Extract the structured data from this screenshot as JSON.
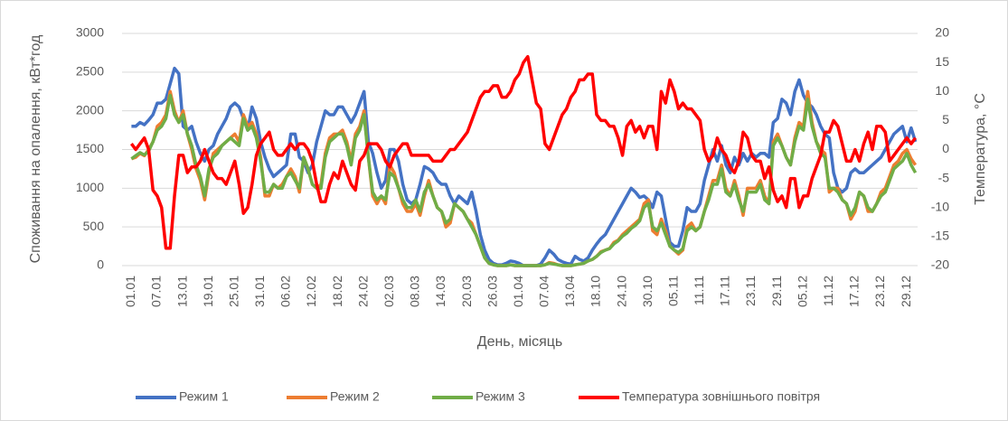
{
  "chart_data": {
    "type": "line",
    "y_label": "Споживання на опалення, кВт*год",
    "y2_label": "Температура, °С",
    "x_label": "День, місяць",
    "categories": [
      "01.01",
      null,
      null,
      null,
      null,
      null,
      "07.01",
      null,
      null,
      null,
      null,
      null,
      "13.01",
      null,
      null,
      null,
      null,
      null,
      "19.01",
      null,
      null,
      null,
      null,
      null,
      "25.01",
      null,
      null,
      null,
      null,
      null,
      "31.01",
      null,
      null,
      null,
      null,
      null,
      "06.02",
      null,
      null,
      null,
      null,
      null,
      "12.02",
      null,
      null,
      null,
      null,
      null,
      "18.02",
      null,
      null,
      null,
      null,
      null,
      "24.02",
      null,
      null,
      null,
      null,
      null,
      "02.03",
      null,
      null,
      null,
      null,
      null,
      "08.03",
      null,
      null,
      null,
      null,
      null,
      "14.03",
      null,
      null,
      null,
      null,
      null,
      "20.03",
      null,
      null,
      null,
      null,
      null,
      "26.03",
      null,
      null,
      null,
      null,
      null,
      "01.04",
      null,
      null,
      null,
      null,
      null,
      "07.04",
      null,
      null,
      null,
      null,
      null,
      "13.04",
      null,
      null,
      null,
      null,
      null,
      "18.10",
      null,
      null,
      null,
      null,
      null,
      "24.10",
      null,
      null,
      null,
      null,
      null,
      "30.10",
      null,
      null,
      null,
      null,
      null,
      "05.11",
      null,
      null,
      null,
      null,
      null,
      "11.11",
      null,
      null,
      null,
      null,
      null,
      "17.11",
      null,
      null,
      null,
      null,
      null,
      "23.11",
      null,
      null,
      null,
      null,
      null,
      "29.11",
      null,
      null,
      null,
      null,
      null,
      "05.12",
      null,
      null,
      null,
      null,
      null,
      "11.12",
      null,
      null,
      null,
      null,
      null,
      "17.12",
      null,
      null,
      null,
      null,
      null,
      "23.12",
      null,
      null,
      null,
      null,
      null,
      "29.12",
      null,
      null
    ],
    "series": [
      {
        "name": "Режим 1",
        "color": "#4472c4",
        "values": [
          1800,
          1800,
          1850,
          1820,
          1880,
          1950,
          2100,
          2100,
          2150,
          2350,
          2550,
          2480,
          1800,
          1750,
          1800,
          1600,
          1450,
          1350,
          1500,
          1550,
          1700,
          1800,
          1900,
          2050,
          2100,
          2050,
          1900,
          1750,
          2050,
          1900,
          1600,
          1400,
          1250,
          1150,
          1200,
          1250,
          1300,
          1700,
          1700,
          1400,
          1350,
          1200,
          1300,
          1600,
          1800,
          2000,
          1950,
          1950,
          2050,
          2050,
          1950,
          1850,
          1950,
          2100,
          2250,
          1600,
          1450,
          1200,
          1000,
          1100,
          1500,
          1500,
          1350,
          1050,
          850,
          800,
          850,
          1050,
          1280,
          1250,
          1200,
          1100,
          1050,
          1050,
          900,
          800,
          900,
          850,
          800,
          950,
          700,
          400,
          200,
          80,
          30,
          10,
          10,
          30,
          60,
          50,
          30,
          0,
          0,
          0,
          0,
          20,
          100,
          200,
          150,
          80,
          50,
          30,
          20,
          120,
          80,
          60,
          100,
          200,
          280,
          350,
          400,
          500,
          600,
          700,
          800,
          900,
          1000,
          950,
          880,
          900,
          850,
          750,
          950,
          900,
          600,
          300,
          250,
          250,
          450,
          750,
          700,
          700,
          800,
          1100,
          1300,
          1500,
          1350,
          1550,
          1300,
          1200,
          1400,
          1300,
          1450,
          1350,
          1450,
          1400,
          1450,
          1450,
          1400,
          1850,
          1900,
          2150,
          2100,
          1950,
          2250,
          2400,
          2200,
          2100,
          2050,
          1950,
          1800,
          1700,
          1650,
          1200,
          1000,
          950,
          1000,
          1200,
          1250,
          1200,
          1200,
          1250,
          1300,
          1350,
          1400,
          1500,
          1600,
          1700,
          1750,
          1800,
          1600,
          1780,
          1600
        ]
      },
      {
        "name": "Режим 2",
        "color": "#ed7d31",
        "values": [
          1380,
          1400,
          1450,
          1420,
          1500,
          1600,
          1800,
          1850,
          1950,
          2250,
          2000,
          1850,
          2000,
          1700,
          1500,
          1250,
          1100,
          850,
          1200,
          1450,
          1500,
          1550,
          1600,
          1650,
          1700,
          1600,
          1950,
          1800,
          1850,
          1700,
          1400,
          900,
          900,
          1050,
          1000,
          1050,
          1150,
          1250,
          1150,
          950,
          1400,
          1250,
          1050,
          1000,
          1050,
          1450,
          1650,
          1700,
          1700,
          1750,
          1600,
          1350,
          1700,
          1800,
          2000,
          1400,
          900,
          800,
          900,
          800,
          1300,
          1200,
          1000,
          800,
          700,
          700,
          800,
          650,
          900,
          1100,
          900,
          750,
          700,
          500,
          550,
          800,
          750,
          700,
          600,
          550,
          400,
          250,
          100,
          30,
          10,
          0,
          0,
          0,
          10,
          0,
          0,
          0,
          0,
          0,
          0,
          0,
          10,
          40,
          30,
          10,
          0,
          0,
          0,
          10,
          20,
          30,
          60,
          80,
          120,
          180,
          200,
          220,
          300,
          330,
          400,
          450,
          500,
          550,
          600,
          800,
          850,
          450,
          400,
          600,
          450,
          250,
          200,
          150,
          200,
          500,
          550,
          450,
          500,
          700,
          900,
          1100,
          1100,
          1300,
          1000,
          900,
          1100,
          900,
          650,
          1000,
          1000,
          1000,
          1100,
          900,
          800,
          1600,
          1700,
          1550,
          1400,
          1300,
          1650,
          1850,
          1800,
          2250,
          1850,
          1600,
          1500,
          1450,
          950,
          1000,
          1000,
          850,
          800,
          600,
          700,
          950,
          900,
          700,
          700,
          800,
          950,
          1000,
          1150,
          1300,
          1350,
          1450,
          1500,
          1380,
          1300
        ]
      },
      {
        "name": "Режим 3",
        "color": "#70ad47",
        "values": [
          1380,
          1420,
          1460,
          1430,
          1480,
          1600,
          1750,
          1800,
          1900,
          2200,
          1950,
          1850,
          1950,
          1700,
          1550,
          1300,
          1150,
          900,
          1250,
          1400,
          1450,
          1550,
          1600,
          1650,
          1600,
          1550,
          1900,
          1750,
          1800,
          1650,
          1350,
          950,
          950,
          1050,
          1000,
          1000,
          1150,
          1200,
          1100,
          1000,
          1400,
          1250,
          1050,
          1000,
          1000,
          1400,
          1600,
          1650,
          1700,
          1700,
          1550,
          1300,
          1650,
          1750,
          1950,
          1400,
          950,
          850,
          900,
          850,
          1200,
          1150,
          1000,
          850,
          750,
          750,
          850,
          700,
          950,
          1050,
          900,
          750,
          700,
          550,
          600,
          800,
          750,
          700,
          600,
          500,
          400,
          250,
          100,
          30,
          10,
          0,
          0,
          0,
          10,
          0,
          0,
          0,
          0,
          0,
          0,
          0,
          10,
          30,
          20,
          10,
          0,
          0,
          0,
          10,
          20,
          30,
          60,
          80,
          120,
          170,
          200,
          220,
          280,
          320,
          380,
          420,
          480,
          520,
          580,
          750,
          800,
          500,
          450,
          550,
          400,
          250,
          200,
          170,
          220,
          450,
          500,
          450,
          500,
          700,
          850,
          1050,
          1050,
          1250,
          950,
          900,
          1050,
          850,
          700,
          950,
          950,
          950,
          1050,
          850,
          800,
          1550,
          1650,
          1550,
          1400,
          1300,
          1600,
          1800,
          1750,
          2150,
          1800,
          1600,
          1450,
          1400,
          1000,
          1000,
          950,
          850,
          800,
          650,
          750,
          950,
          900,
          750,
          700,
          800,
          900,
          950,
          1100,
          1250,
          1300,
          1350,
          1450,
          1300,
          1200
        ]
      },
      {
        "name": "Температура зовнішнього повітря",
        "color": "#ff0000",
        "axis": "y2",
        "values": [
          1,
          0,
          1,
          2,
          0,
          -7,
          -8,
          -10,
          -17,
          -17,
          -8,
          -1,
          -1,
          -4,
          -3,
          -3,
          -2,
          0,
          -2,
          -4,
          -5,
          -5,
          -6,
          -4,
          -2,
          -6,
          -11,
          -10,
          -6,
          -1,
          1,
          2,
          3,
          0,
          -1,
          -1,
          0,
          1,
          0,
          1,
          1,
          0,
          -2,
          -6,
          -9,
          -9,
          -6,
          -4,
          -5,
          -2,
          -4,
          -6,
          -7,
          -2,
          -1,
          1,
          1,
          1,
          0,
          -2,
          -3,
          -1,
          0,
          1,
          1,
          -1,
          -1,
          -1,
          -1,
          -1,
          -2,
          -2,
          -2,
          -1,
          0,
          0,
          1,
          2,
          3,
          5,
          7,
          9,
          10,
          10,
          11,
          11,
          9,
          9,
          10,
          12,
          13,
          15,
          16,
          12,
          8,
          7,
          1,
          0,
          2,
          4,
          6,
          7,
          9,
          10,
          12,
          12,
          13,
          13,
          6,
          5,
          5,
          4,
          4,
          2,
          -1,
          4,
          5,
          3,
          4,
          2,
          4,
          4,
          0,
          10,
          8,
          12,
          10,
          7,
          8,
          7,
          7,
          6,
          5,
          0,
          -2,
          -1,
          2,
          0,
          -1,
          -3,
          -4,
          -2,
          3,
          2,
          -1,
          -2,
          -2,
          -5,
          -3,
          -7,
          -9,
          -8,
          -10,
          -5,
          -5,
          -10,
          -8,
          -8,
          -5,
          -3,
          -1,
          3,
          3,
          5,
          4,
          1,
          -2,
          -2,
          0,
          -2,
          1,
          3,
          0,
          4,
          4,
          3,
          -2,
          -1,
          0,
          1,
          2,
          1,
          2
        ]
      }
    ],
    "ylim": [
      0,
      3000
    ],
    "yticks": [
      0,
      500,
      1000,
      1500,
      2000,
      2500,
      3000
    ],
    "y2lim": [
      -20,
      20
    ],
    "y2ticks": [
      -20,
      -15,
      -10,
      -5,
      0,
      5,
      10,
      15,
      20
    ],
    "grid": true,
    "legend": "bottom"
  }
}
